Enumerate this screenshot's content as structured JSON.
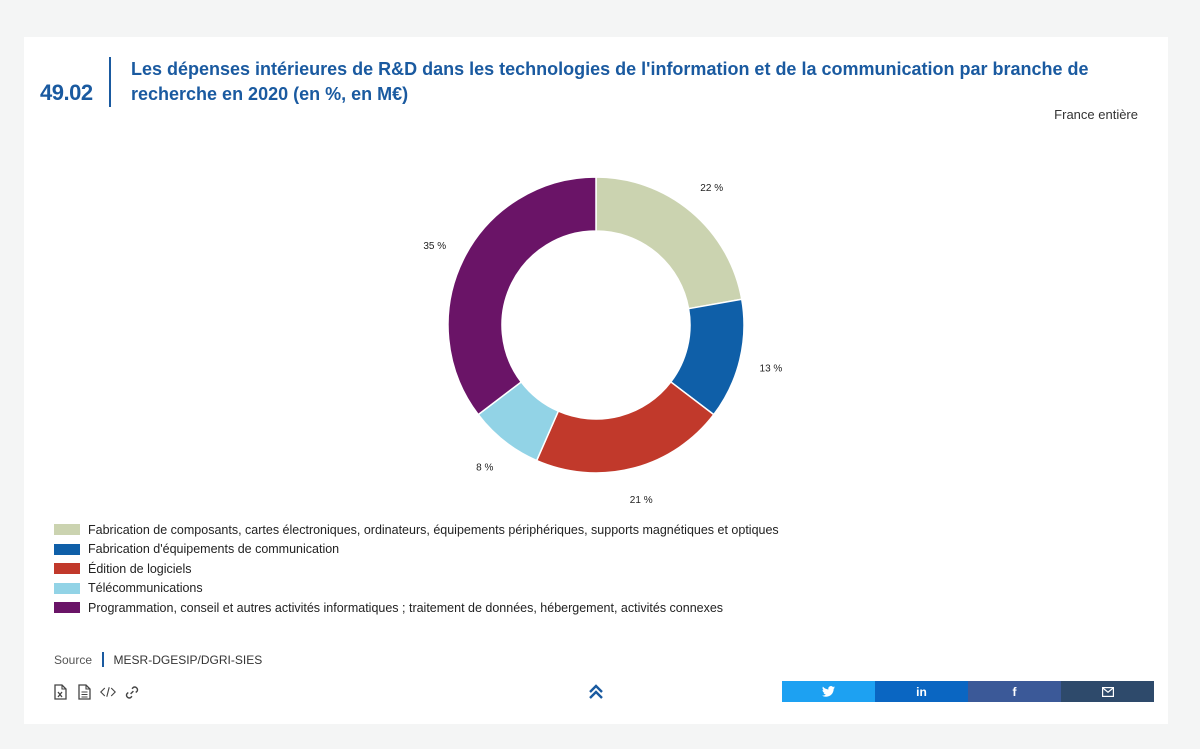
{
  "header": {
    "figure_number": "49.02",
    "title": "Les dépenses intérieures de R&D dans les technologies de l'information et de la communication par branche de recherche en 2020 (en %, en M€)",
    "subtitle": "France entière"
  },
  "chart_data": {
    "type": "pie",
    "donut": true,
    "categories": [
      "Fabrication de composants, cartes électroniques, ordinateurs, équipements périphériques, supports magnétiques et optiques",
      "Fabrication d'équipements de communication",
      "Édition de logiciels",
      "Télécommunications",
      "Programmation, conseil et autres activités informatiques ; traitement de données, hébergement, activités connexes"
    ],
    "values": [
      22,
      13,
      21,
      8,
      35
    ],
    "labels": [
      "22 %",
      "13 %",
      "21 %",
      "8 %",
      "35 %"
    ],
    "colors": [
      "#cbd3b0",
      "#0f5fa8",
      "#c1392b",
      "#92d3e6",
      "#6a1467"
    ],
    "legend_position": "bottom-left"
  },
  "source": {
    "label": "Source",
    "value": "MESR-DGESIP/DGRI-SIES"
  },
  "toolbar": {
    "icons": [
      "excel-icon",
      "document-icon",
      "code-icon",
      "link-icon"
    ]
  },
  "share": {
    "twitter_color": "#1da1f2",
    "linkedin_color": "#0a66c2",
    "facebook_color": "#3b5998",
    "email_color": "#2e4a6b",
    "linkedin_label": "in",
    "facebook_label": "f"
  }
}
